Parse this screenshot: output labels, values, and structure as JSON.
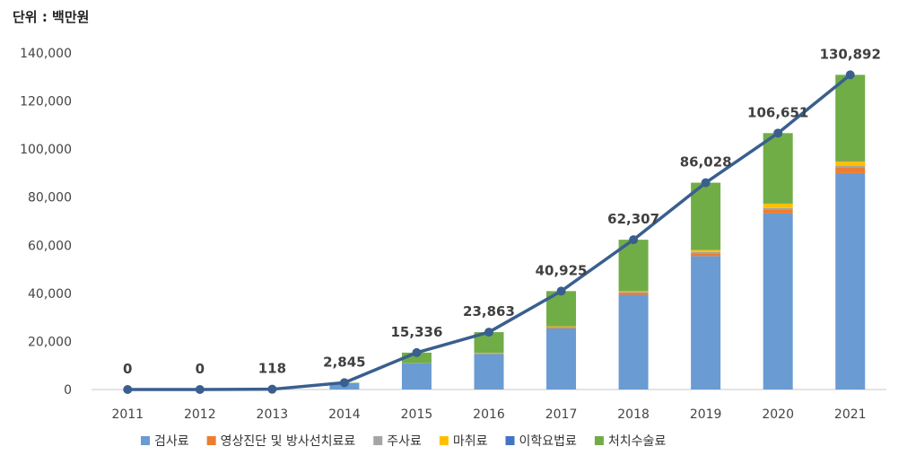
{
  "unit_label": "단위 : 백만원",
  "chart_data": {
    "type": "bar",
    "stacked": true,
    "categories": [
      "2011",
      "2012",
      "2013",
      "2014",
      "2015",
      "2016",
      "2017",
      "2018",
      "2019",
      "2020",
      "2021"
    ],
    "series": [
      {
        "name": "검사료",
        "color": "#6a9bd3",
        "values": [
          0,
          0,
          100,
          2700,
          10900,
          14800,
          25500,
          39400,
          55500,
          73200,
          90000
        ]
      },
      {
        "name": "영상진단 및 방사선치료료",
        "color": "#ed7d31",
        "values": [
          0,
          0,
          0,
          0,
          0,
          200,
          500,
          900,
          1200,
          1700,
          2500
        ]
      },
      {
        "name": "주사료",
        "color": "#a5a5a5",
        "values": [
          0,
          0,
          0,
          0,
          100,
          100,
          100,
          300,
          500,
          600,
          600
        ]
      },
      {
        "name": "마취료",
        "color": "#ffc000",
        "values": [
          0,
          0,
          0,
          0,
          0,
          100,
          200,
          300,
          800,
          1800,
          1900
        ]
      },
      {
        "name": "이학요법료",
        "color": "#4472c4",
        "values": [
          0,
          0,
          0,
          0,
          0,
          0,
          0,
          0,
          100,
          100,
          200
        ]
      },
      {
        "name": "처치수술료",
        "color": "#70ad47",
        "values": [
          0,
          0,
          18,
          145,
          4336,
          8663,
          14625,
          21407,
          27928,
          29251,
          35692
        ]
      }
    ],
    "line": {
      "color": "#3a5f8f",
      "values": [
        0,
        0,
        118,
        2845,
        15336,
        23863,
        40925,
        62307,
        86028,
        106651,
        130892
      ],
      "labels": [
        "0",
        "0",
        "118",
        "2,845",
        "15,336",
        "23,863",
        "40,925",
        "62,307",
        "86,028",
        "106,651",
        "130,892"
      ]
    },
    "y_ticks": [
      "0",
      "20,000",
      "40,000",
      "60,000",
      "80,000",
      "100,000",
      "120,000",
      "140,000"
    ],
    "ylim": [
      0,
      140000
    ],
    "legend_position": "bottom",
    "grid": false
  }
}
